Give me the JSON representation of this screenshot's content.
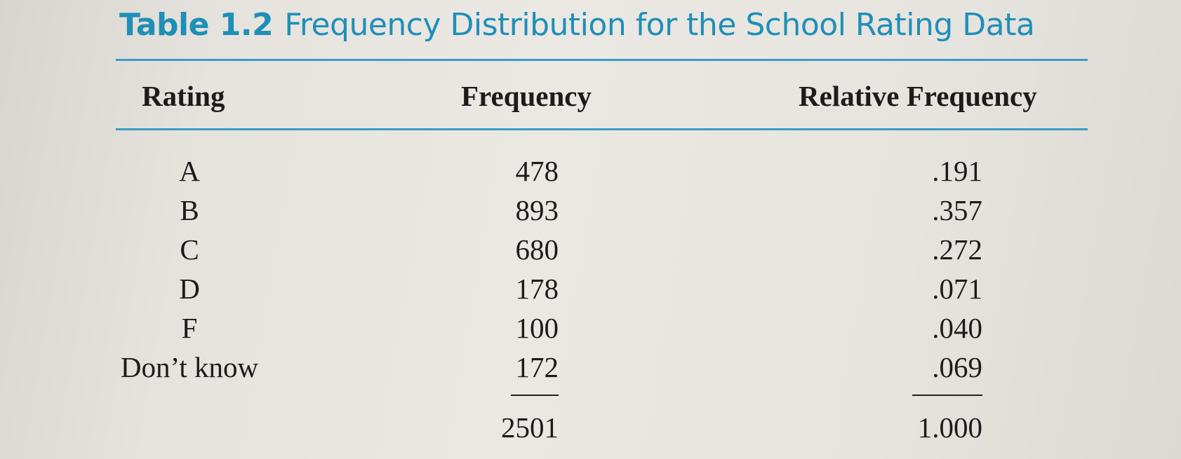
{
  "table": {
    "label": "Table 1.2",
    "caption": "Frequency Distribution for the School Rating Data",
    "columns": [
      "Rating",
      "Frequency",
      "Relative Frequency"
    ],
    "rows": [
      {
        "rating": "A",
        "frequency": "478",
        "relative": ".191"
      },
      {
        "rating": "B",
        "frequency": "893",
        "relative": ".357"
      },
      {
        "rating": "C",
        "frequency": "680",
        "relative": ".272"
      },
      {
        "rating": "D",
        "frequency": "178",
        "relative": ".071"
      },
      {
        "rating": "F",
        "frequency": "100",
        "relative": ".040"
      },
      {
        "rating": "Don’t know",
        "frequency": "172",
        "relative": ".069"
      }
    ],
    "totals": {
      "frequency": "2501",
      "relative": "1.000"
    }
  },
  "colors": {
    "accent": "#1f8fb8",
    "rule": "#3a9cc6",
    "text": "#1c1c1c"
  }
}
